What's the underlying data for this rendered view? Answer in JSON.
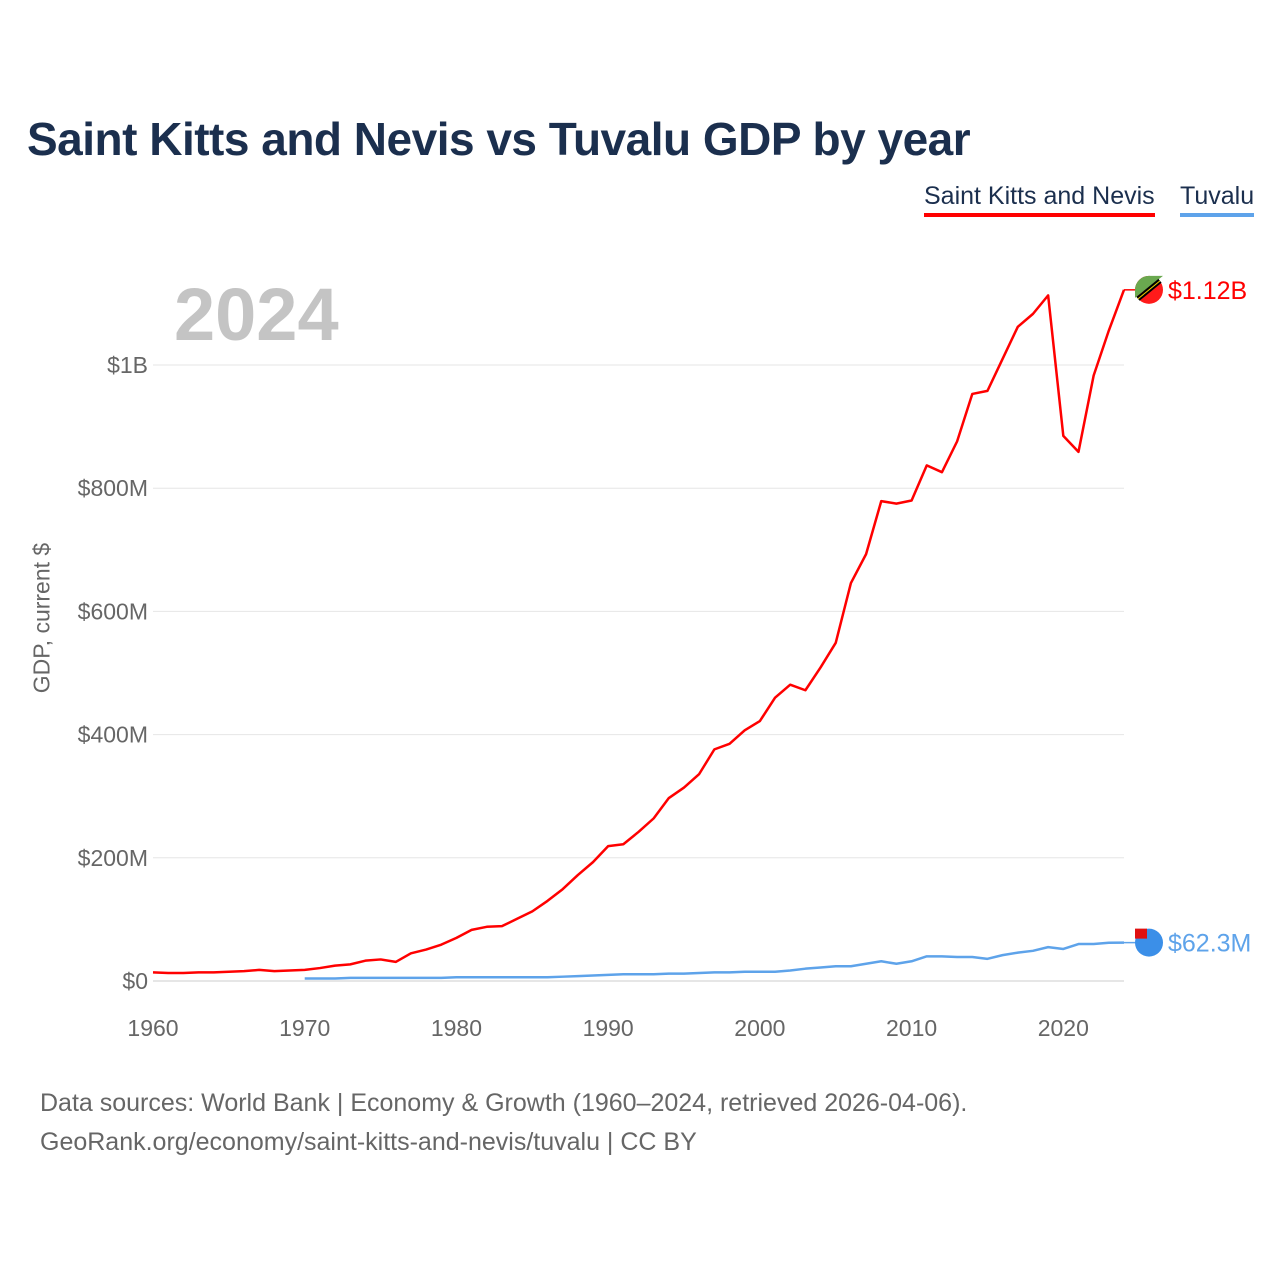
{
  "chart_data": {
    "type": "line",
    "title": "Saint Kitts and Nevis vs Tuvalu GDP by year",
    "ylabel": "GDP, current $",
    "xlabel": "",
    "year_label": "2024",
    "xlim": [
      1960,
      2024
    ],
    "ylim": [
      0,
      1150
    ],
    "units": "million USD",
    "x_ticks": [
      1960,
      1970,
      1980,
      1990,
      2000,
      2010,
      2020
    ],
    "x_tick_labels": [
      "1960",
      "1970",
      "1980",
      "1990",
      "2000",
      "2010",
      "2020"
    ],
    "y_ticks": [
      0,
      200,
      400,
      600,
      800,
      1000
    ],
    "y_tick_labels": [
      "$0",
      "$200M",
      "$400M",
      "$600M",
      "$800M",
      "$1B"
    ],
    "grid": true,
    "legend_position": "top-right",
    "series": [
      {
        "name": "Saint Kitts and Nevis",
        "color": "#ff0000",
        "end_label": "$1.12B",
        "start_year": 1960,
        "values": [
          14,
          13,
          13,
          14,
          14,
          15,
          16,
          18,
          16,
          17,
          18,
          21,
          25,
          27,
          33,
          35,
          31,
          45,
          51,
          59,
          70,
          83,
          88,
          89,
          101,
          113,
          130,
          149,
          172,
          193,
          219,
          222,
          242,
          264,
          297,
          314,
          336,
          376,
          385,
          407,
          422,
          460,
          481,
          472,
          509,
          549,
          646,
          693,
          779,
          775,
          780,
          837,
          826,
          876,
          953,
          958,
          1010,
          1062,
          1083,
          1113,
          885,
          859,
          983,
          1056,
          1122
        ]
      },
      {
        "name": "Tuvalu",
        "color": "#5ea3ea",
        "end_label": "$62.3M",
        "start_year": 1970,
        "values": [
          4,
          4,
          4,
          5,
          5,
          5,
          5,
          5,
          5,
          5,
          6,
          6,
          6,
          6,
          6,
          6,
          6,
          7,
          8,
          9,
          10,
          11,
          11,
          11,
          12,
          12,
          13,
          14,
          14,
          15,
          15,
          15,
          17,
          20,
          22,
          24,
          24,
          28,
          32,
          28,
          32,
          40,
          40,
          39,
          39,
          36,
          42,
          46,
          49,
          55,
          52,
          60,
          60,
          62,
          62.3
        ]
      }
    ]
  },
  "footer": {
    "line1": "Data sources: World Bank | Economy & Growth (1960–2024, retrieved 2026-04-06).",
    "line2": "GeoRank.org/economy/saint-kitts-and-nevis/tuvalu | CC BY"
  }
}
